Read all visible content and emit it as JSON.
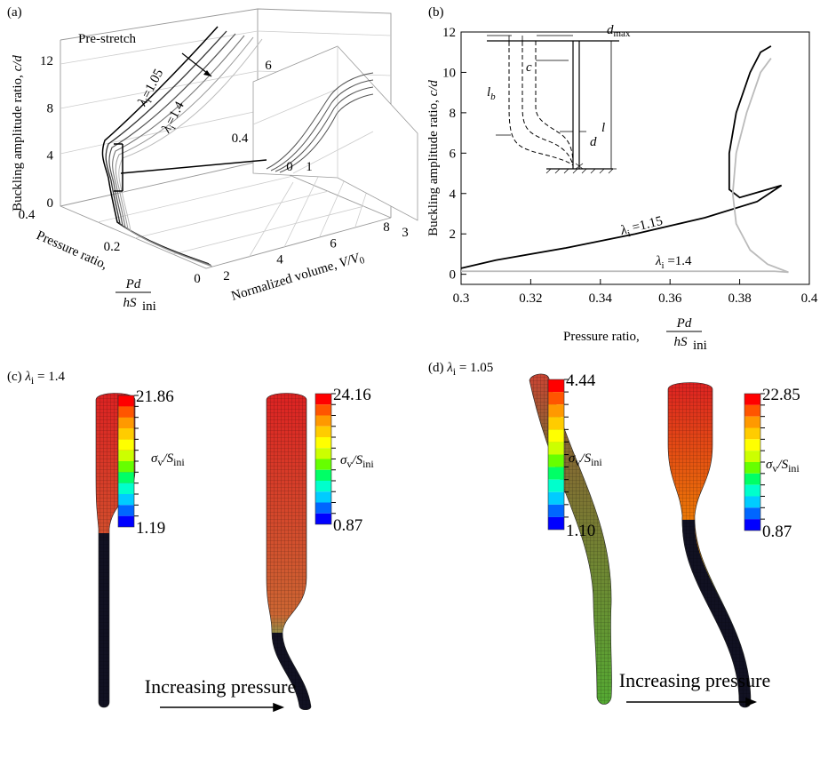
{
  "panel_a": {
    "label": "(a)",
    "y_axis_label": "Buckling amplitude ratio,",
    "y_axis_symbol": "c/d",
    "y_ticks": [
      0,
      4,
      8,
      12
    ],
    "p_axis_label": "Pressure ratio,",
    "p_axis_numerator": "Pd",
    "p_axis_denominator": "hS",
    "p_axis_denominator_sub": "ini",
    "p_ticks": [
      0,
      0.2,
      0.4
    ],
    "v_axis_label": "Normalized volume,",
    "v_axis_symbol": "V/V",
    "v_axis_symbol_sub": "0",
    "v_ticks": [
      2,
      4,
      6,
      8
    ],
    "annotation": "Pre-stretch",
    "lambda_top": {
      "sym": "λ",
      "sub": "i",
      "value": "=1.05"
    },
    "lambda_bottom": {
      "sym": "λ",
      "sub": "i",
      "value": "=1.4"
    },
    "inset_tick_labels": [
      6,
      0.4,
      0,
      1,
      3
    ]
  },
  "panel_b": {
    "label": "(b)",
    "y_axis_label": "Buckling amplitude ratio,",
    "y_axis_symbol": "c/d",
    "x_axis_label": "Pressure ratio,",
    "x_axis_numerator": "Pd",
    "x_axis_denominator": "hS",
    "x_axis_denominator_sub": "ini",
    "xlim": [
      0.3,
      0.4
    ],
    "xticks": [
      0.3,
      0.32,
      0.34,
      0.36,
      0.38,
      0.4
    ],
    "ylim": [
      -0.5,
      12
    ],
    "yticks": [
      0,
      2,
      4,
      6,
      8,
      10,
      12
    ],
    "series": [
      {
        "label": {
          "sym": "λ",
          "sub": "i",
          "value": " =1.15"
        },
        "color": "#000000",
        "x": [
          0.3,
          0.31,
          0.33,
          0.35,
          0.37,
          0.385,
          0.392,
          0.386,
          0.38,
          0.377,
          0.377,
          0.379,
          0.383,
          0.386,
          0.389
        ],
        "y": [
          0.3,
          0.7,
          1.3,
          2.0,
          2.8,
          3.6,
          4.4,
          4.1,
          3.8,
          4.2,
          6,
          8,
          10,
          11,
          11.3
        ]
      },
      {
        "label": {
          "sym": "λ",
          "sub": "i",
          "value": " =1.4"
        },
        "color": "#bbbbbb",
        "x": [
          0.3,
          0.33,
          0.36,
          0.39,
          0.394,
          0.388,
          0.383,
          0.379,
          0.378,
          0.379,
          0.382,
          0.386,
          0.389
        ],
        "y": [
          0.15,
          0.15,
          0.15,
          0.15,
          0.1,
          0.5,
          1.2,
          2.5,
          4,
          6,
          8,
          10,
          10.7
        ]
      }
    ],
    "inset_labels": {
      "d_max": "d",
      "d_max_sub": "max",
      "c": "c",
      "l_b": "l",
      "l_b_sub": "b",
      "l": "l",
      "d": "d"
    }
  },
  "panel_c": {
    "label": "(c)",
    "lambda": {
      "sym": "λ",
      "sub": "i",
      "value": " = 1.4"
    },
    "colorbars": [
      {
        "max": "21.86",
        "min": "1.19"
      },
      {
        "max": "24.16",
        "min": "0.87"
      }
    ],
    "colorbar_title": {
      "sym": "σ",
      "sub": "v",
      "mid": "/S",
      "sub2": "ini"
    },
    "caption": "Increasing pressure"
  },
  "panel_d": {
    "label": "(d)",
    "lambda": {
      "sym": "λ",
      "sub": "i",
      "value": " = 1.05"
    },
    "colorbars": [
      {
        "max": "4.44",
        "min": "1.10"
      },
      {
        "max": "22.85",
        "min": "0.87"
      }
    ],
    "colorbar_title": {
      "sym": "σ",
      "sub": "v",
      "mid": "/S",
      "sub2": "ini"
    },
    "caption": "Increasing pressure"
  }
}
